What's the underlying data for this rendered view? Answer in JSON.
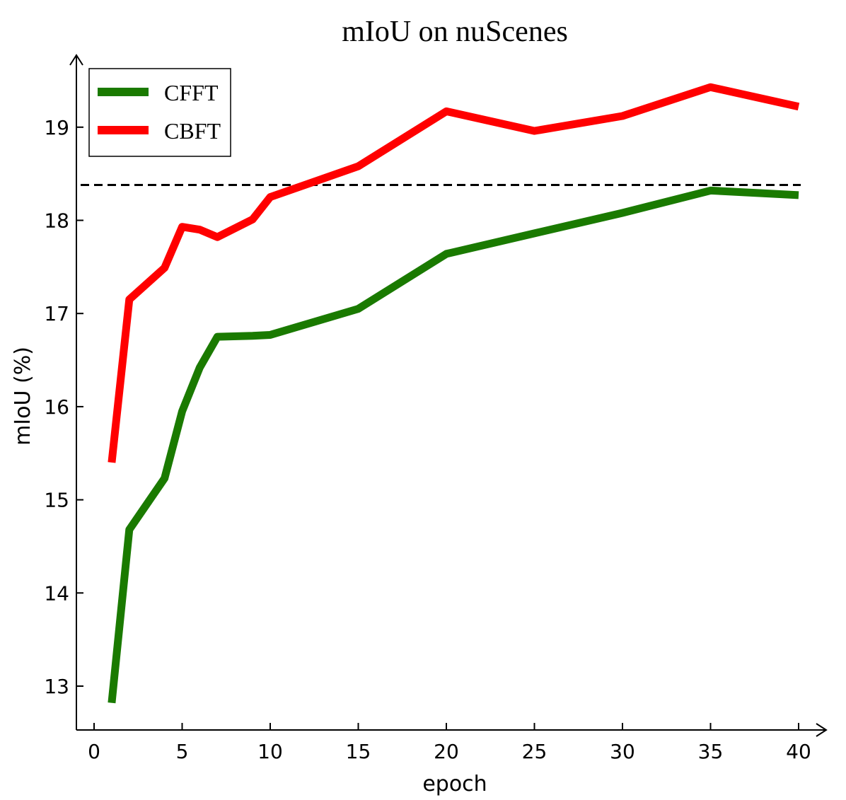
{
  "chart_data": {
    "type": "line",
    "title": "mIoU on nuScenes",
    "xlabel": "epoch",
    "ylabel": "mIoU (%)",
    "xlim": [
      0,
      40
    ],
    "ylim": [
      12.5,
      19.7
    ],
    "xticks": [
      0,
      5,
      10,
      15,
      20,
      25,
      30,
      35,
      40
    ],
    "yticks": [
      13,
      14,
      15,
      16,
      17,
      18,
      19
    ],
    "grid": false,
    "legend_position": "top-left",
    "reference_line": {
      "y": 18.38,
      "style": "dashed",
      "color": "#000000"
    },
    "series": [
      {
        "name": "CFFT",
        "color": "#1a7a00",
        "x": [
          1,
          2,
          4,
          5,
          6,
          7,
          9,
          10,
          15,
          20,
          25,
          30,
          35,
          40
        ],
        "y": [
          12.82,
          14.68,
          15.23,
          15.95,
          16.42,
          16.75,
          16.76,
          16.77,
          17.05,
          17.64,
          17.86,
          18.08,
          18.32,
          18.27
        ]
      },
      {
        "name": "CBFT",
        "color": "#ff0000",
        "x": [
          1,
          2,
          4,
          5,
          6,
          7,
          9,
          10,
          15,
          20,
          25,
          30,
          35,
          40
        ],
        "y": [
          15.4,
          17.15,
          17.49,
          17.93,
          17.9,
          17.82,
          18.01,
          18.25,
          18.58,
          19.17,
          18.96,
          19.12,
          19.43,
          19.22
        ]
      }
    ]
  }
}
